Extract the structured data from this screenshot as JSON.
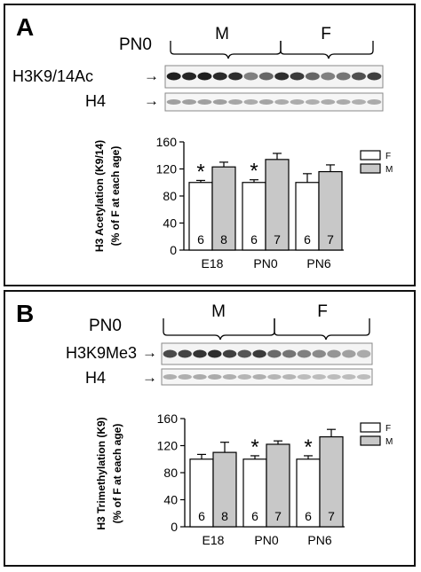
{
  "panels": [
    {
      "letter": "A",
      "time_label": "PN0",
      "group_male": "M",
      "group_female": "F",
      "blot_label": "H3K9/14Ac",
      "blot_intensity": [
        0.95,
        0.92,
        0.95,
        0.9,
        0.88,
        0.5,
        0.62,
        0.88,
        0.82,
        0.62,
        0.5,
        0.55,
        0.72,
        0.8
      ],
      "loading_label": "H4",
      "loading_intensity": [
        0.35,
        0.35,
        0.35,
        0.35,
        0.32,
        0.3,
        0.33,
        0.3,
        0.3,
        0.28,
        0.3,
        0.3,
        0.28,
        0.3
      ],
      "y_label_line1": "H3 Acetylation (K9/14)",
      "y_label_line2": "(% of F at each age)",
      "legend": [
        {
          "label": "F",
          "color": "#ffffff"
        },
        {
          "label": "M",
          "color": "#c8c8c8"
        }
      ],
      "chart_data": {
        "type": "bar",
        "categories": [
          "E18",
          "PN0",
          "PN6"
        ],
        "series": [
          {
            "name": "F",
            "values": [
              100,
              100,
              100
            ],
            "errors": [
              3,
              4,
              13
            ],
            "n": [
              "6",
              "6",
              "6"
            ]
          },
          {
            "name": "M",
            "values": [
              123,
              134,
              116
            ],
            "errors": [
              7,
              9,
              10
            ],
            "n": [
              "8",
              "7",
              "7"
            ]
          }
        ],
        "significance": [
          "*",
          "*",
          ""
        ],
        "ylim": [
          0,
          160
        ],
        "yticks": [
          0,
          40,
          80,
          120,
          160
        ],
        "ylabel": "H3 Acetylation (K9/14) (% of F at each age)"
      }
    },
    {
      "letter": "B",
      "time_label": "PN0",
      "group_male": "M",
      "group_female": "F",
      "blot_label": "H3K9Me3",
      "blot_intensity": [
        0.75,
        0.78,
        0.85,
        0.88,
        0.8,
        0.7,
        0.82,
        0.6,
        0.55,
        0.5,
        0.45,
        0.4,
        0.35,
        0.3
      ],
      "loading_label": "H4",
      "loading_intensity": [
        0.28,
        0.28,
        0.3,
        0.3,
        0.28,
        0.25,
        0.28,
        0.25,
        0.25,
        0.22,
        0.22,
        0.22,
        0.22,
        0.22
      ],
      "y_label_line1": "H3 Trimethylation (K9)",
      "y_label_line2": "(% of F at each age)",
      "legend": [
        {
          "label": "F",
          "color": "#ffffff"
        },
        {
          "label": "M",
          "color": "#c8c8c8"
        }
      ],
      "chart_data": {
        "type": "bar",
        "categories": [
          "E18",
          "PN0",
          "PN6"
        ],
        "series": [
          {
            "name": "F",
            "values": [
              100,
              100,
              100
            ],
            "errors": [
              7,
              5,
              5
            ],
            "n": [
              "6",
              "6",
              "6"
            ]
          },
          {
            "name": "M",
            "values": [
              110,
              122,
              133
            ],
            "errors": [
              15,
              5,
              11
            ],
            "n": [
              "8",
              "7",
              "7"
            ]
          }
        ],
        "significance": [
          "",
          "*",
          "*"
        ],
        "ylim": [
          0,
          160
        ],
        "yticks": [
          0,
          40,
          80,
          120,
          160
        ],
        "ylabel": "H3 Trimethylation (K9) (% of F at each age)"
      }
    }
  ]
}
